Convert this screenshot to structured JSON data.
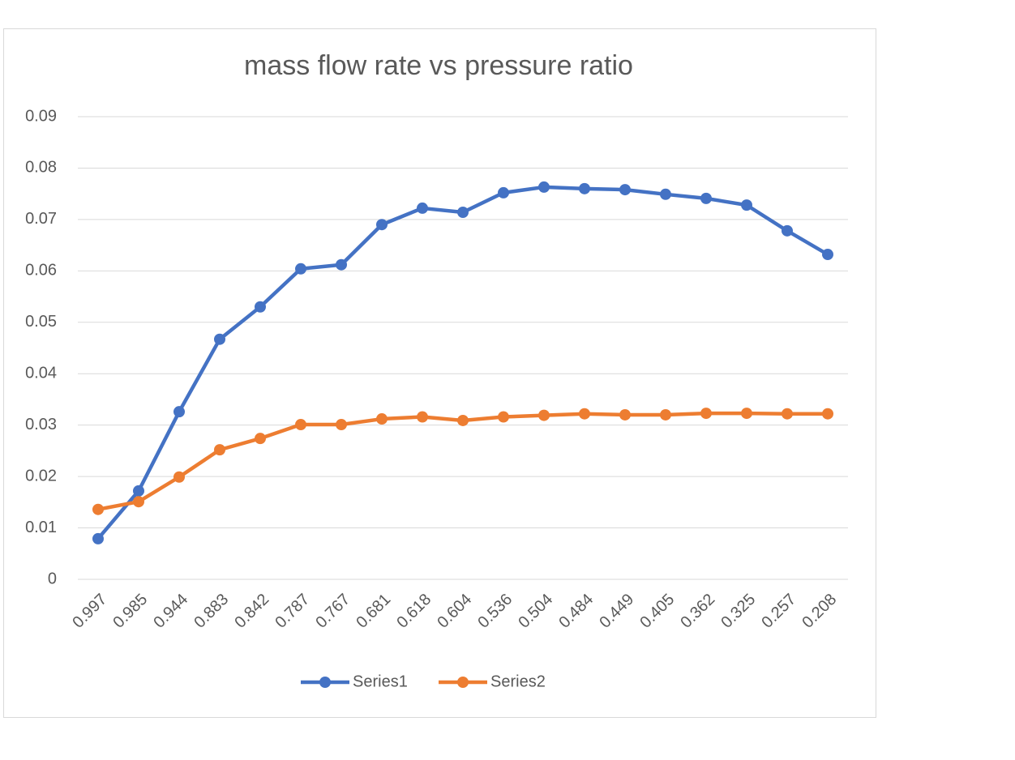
{
  "chart_data": {
    "type": "line",
    "title": "mass flow rate vs pressure ratio",
    "categories": [
      "0.997",
      "0.985",
      "0.944",
      "0.883",
      "0.842",
      "0.787",
      "0.767",
      "0.681",
      "0.618",
      "0.604",
      "0.536",
      "0.504",
      "0.484",
      "0.449",
      "0.405",
      "0.362",
      "0.325",
      "0.257",
      "0.208"
    ],
    "series": [
      {
        "name": "Series1",
        "color": "#4472c4",
        "values": [
          0.0079,
          0.0172,
          0.0326,
          0.0467,
          0.053,
          0.0604,
          0.0612,
          0.069,
          0.0722,
          0.0714,
          0.0752,
          0.0763,
          0.076,
          0.0758,
          0.0749,
          0.0741,
          0.0728,
          0.0678,
          0.0632
        ]
      },
      {
        "name": "Series2",
        "color": "#ed7d31",
        "values": [
          0.0136,
          0.0151,
          0.0199,
          0.0252,
          0.0274,
          0.0301,
          0.0301,
          0.0312,
          0.0316,
          0.0309,
          0.0316,
          0.0319,
          0.0322,
          0.032,
          0.032,
          0.0323,
          0.0323,
          0.0322,
          0.0322
        ]
      }
    ],
    "ylim": [
      0,
      0.09
    ],
    "yticks": [
      0,
      0.01,
      0.02,
      0.03,
      0.04,
      0.05,
      0.06,
      0.07,
      0.08,
      0.09
    ],
    "grid": true,
    "legend": "bottom"
  }
}
